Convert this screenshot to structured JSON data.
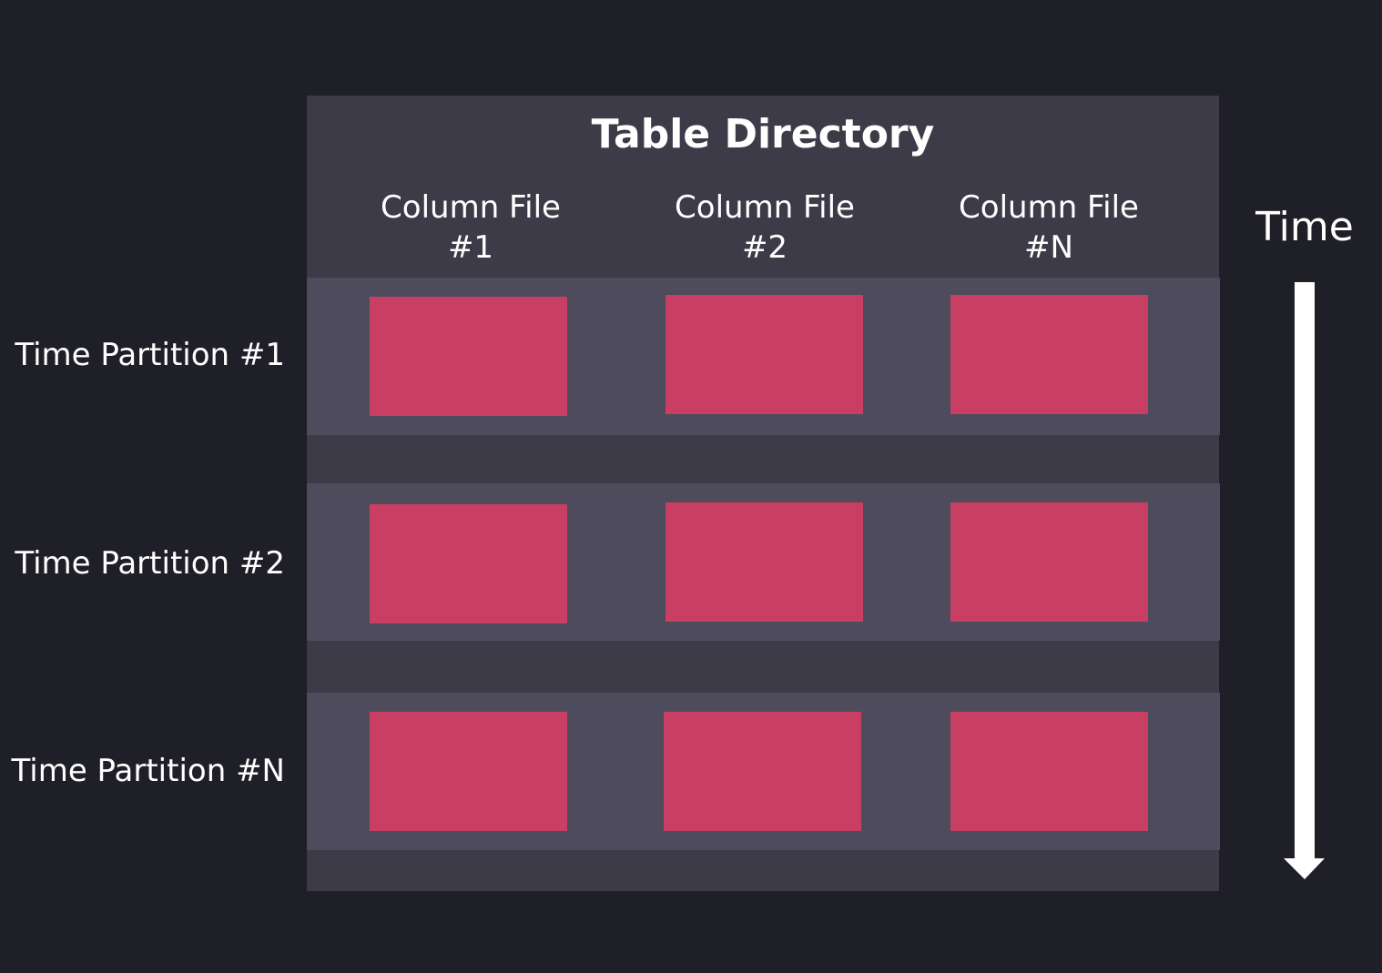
{
  "title": "Table Directory",
  "columns": [
    {
      "line1": "Column File",
      "line2": "#1"
    },
    {
      "line1": "Column File",
      "line2": "#2"
    },
    {
      "line1": "Column File",
      "line2": "#N"
    }
  ],
  "partitions": [
    "Time Partition #1",
    "Time Partition #2",
    "Time Partition #N"
  ],
  "time_label": "Time",
  "colors": {
    "background": "#1f1f27",
    "directory": "#3d3b48",
    "partition": "#4e4b5c",
    "column_file": "#c83f63",
    "arrow": "#ffffff"
  }
}
